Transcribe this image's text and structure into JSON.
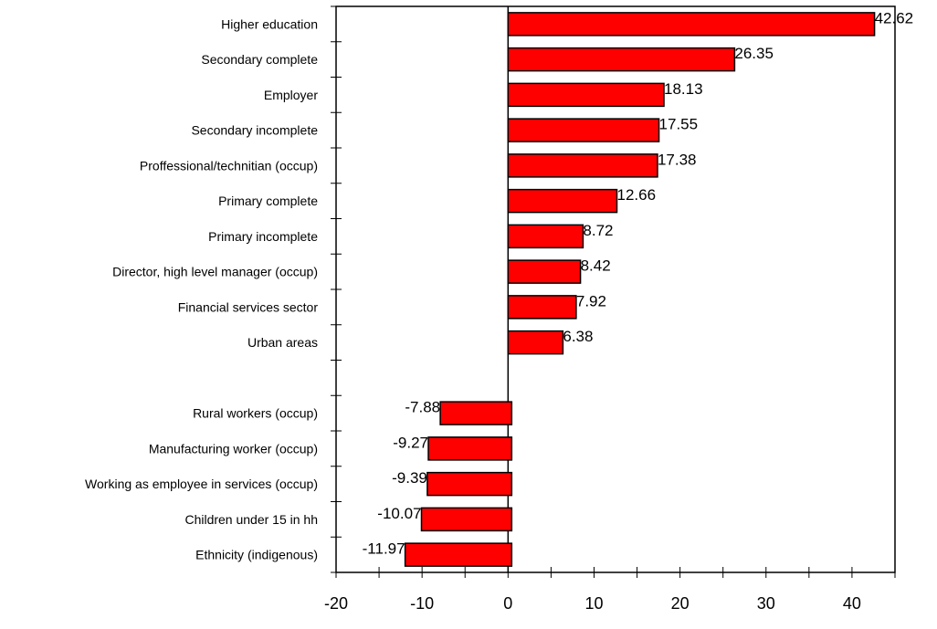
{
  "chart_data": {
    "type": "bar",
    "orientation": "horizontal",
    "title": "",
    "xlabel": "",
    "ylabel": "",
    "xlim": [
      -20,
      45
    ],
    "x_ticks": [
      -20,
      -10,
      0,
      10,
      20,
      30,
      40
    ],
    "grid": false,
    "legend": "none",
    "bar_color": "#ff0000",
    "categories": [
      "Higher education",
      "Secondary complete",
      "Employer",
      "Secondary incomplete",
      "Proffessional/technitian (occup)",
      "Primary complete",
      "Primary incomplete",
      "Director, high level manager (occup)",
      "Financial services sector",
      "Urban areas",
      "",
      "Rural workers (occup)",
      "Manufacturing worker (occup)",
      "Working as employee in services (occup)",
      "Children under 15 in hh",
      "Ethnicity (indigenous)"
    ],
    "values": [
      42.62,
      26.35,
      18.13,
      17.55,
      17.38,
      12.66,
      8.72,
      8.42,
      7.92,
      6.38,
      null,
      -7.88,
      -9.27,
      -9.39,
      -10.07,
      -11.97
    ],
    "value_labels": [
      "42.62",
      "26.35",
      "18.13",
      "17.55",
      "17.38",
      "12.66",
      "8.72",
      "8.42",
      "7.92",
      "6.38",
      "",
      "-7.88",
      "-9.27",
      "-9.39",
      "-10.07",
      "-11.97"
    ]
  }
}
